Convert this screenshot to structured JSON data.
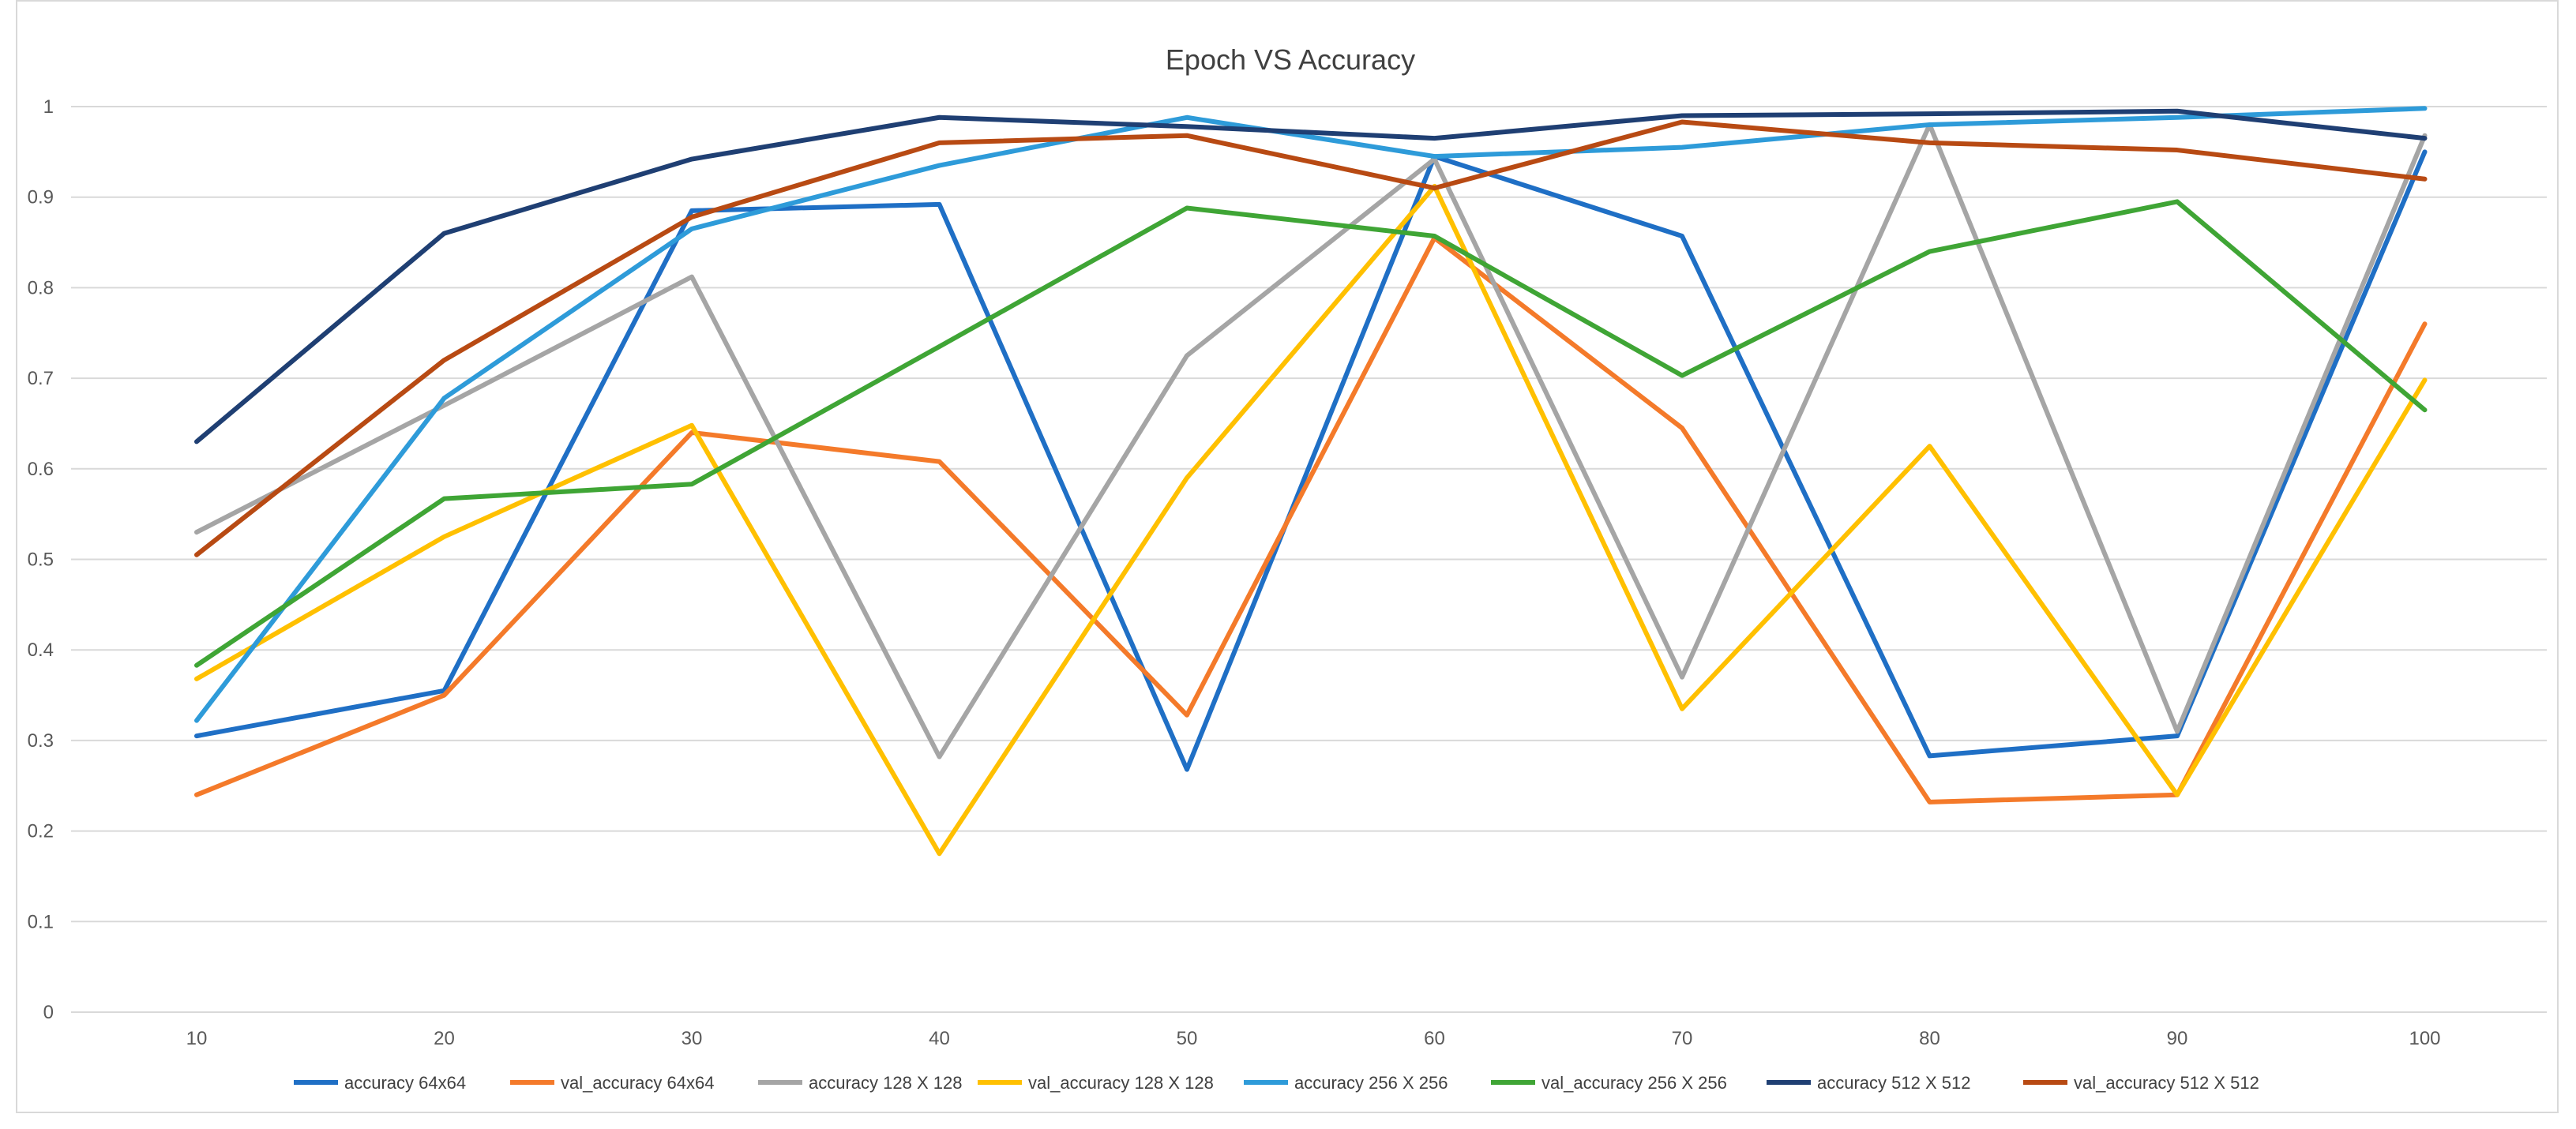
{
  "chart_data": {
    "type": "line",
    "title": "Epoch VS Accuracy",
    "xlabel": "",
    "ylabel": "",
    "categories": [
      "10",
      "20",
      "30",
      "40",
      "50",
      "60",
      "70",
      "80",
      "90",
      "100"
    ],
    "ylim": [
      0,
      1
    ],
    "yticks": [
      "0",
      "0.1",
      "0.2",
      "0.3",
      "0.4",
      "0.5",
      "0.6",
      "0.7",
      "0.8",
      "0.9",
      "1"
    ],
    "grid": true,
    "legend_position": "bottom",
    "series": [
      {
        "name": "accuracy 64x64",
        "color": "#1f6fc5",
        "values": [
          0.305,
          0.355,
          0.885,
          0.892,
          0.268,
          0.945,
          0.857,
          0.283,
          0.305,
          0.95
        ]
      },
      {
        "name": "val_accuracy 64x64",
        "color": "#f47a2a",
        "values": [
          0.24,
          0.35,
          0.64,
          0.608,
          0.328,
          0.855,
          0.645,
          0.232,
          0.24,
          0.76
        ]
      },
      {
        "name": "accuracy 128 X 128",
        "color": "#a5a5a5",
        "values": [
          0.53,
          0.67,
          0.812,
          0.282,
          0.725,
          0.942,
          0.37,
          0.98,
          0.31,
          0.968
        ]
      },
      {
        "name": "val_accuracy 128 X 128",
        "color": "#ffc000",
        "values": [
          0.368,
          0.525,
          0.648,
          0.175,
          0.59,
          0.912,
          0.335,
          0.625,
          0.24,
          0.698
        ]
      },
      {
        "name": "accuracy 256 X 256",
        "color": "#2e9bd9",
        "values": [
          0.322,
          0.678,
          0.865,
          0.935,
          0.988,
          0.945,
          0.955,
          0.98,
          0.988,
          0.998
        ]
      },
      {
        "name": "val_accuracy 256 X 256",
        "color": "#3fa535",
        "values": [
          0.383,
          0.567,
          0.583,
          0.735,
          0.888,
          0.857,
          0.703,
          0.84,
          0.895,
          0.665
        ]
      },
      {
        "name": "accuracy 512 X 512",
        "color": "#1f3f73",
        "values": [
          0.63,
          0.86,
          0.942,
          0.988,
          0.978,
          0.965,
          0.99,
          0.992,
          0.995,
          0.965
        ]
      },
      {
        "name": "val_accuracy 512 X 512",
        "color": "#b84a13",
        "values": [
          0.505,
          0.72,
          0.878,
          0.96,
          0.968,
          0.91,
          0.983,
          0.96,
          0.952,
          0.92
        ]
      }
    ]
  }
}
